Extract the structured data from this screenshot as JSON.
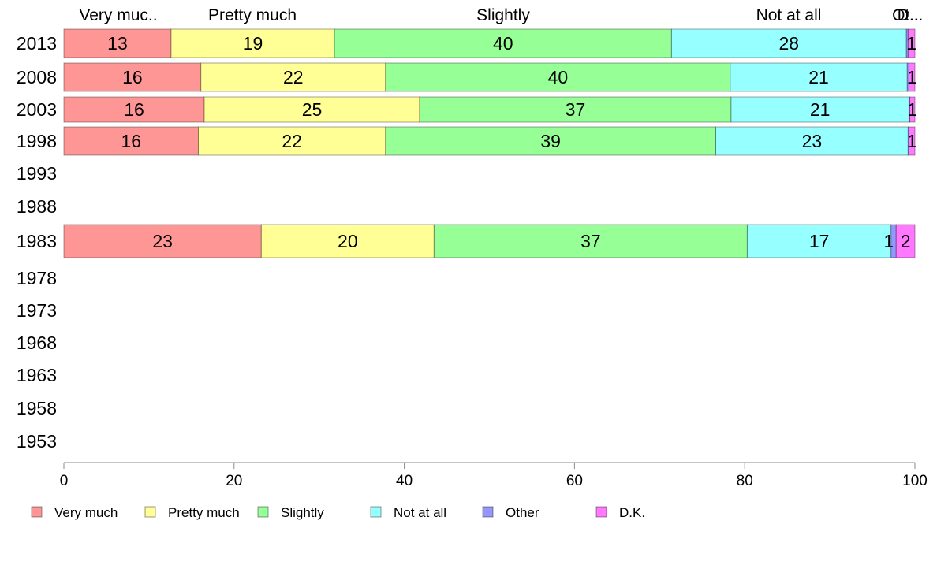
{
  "chart_data": {
    "type": "bar",
    "orientation": "horizontal",
    "stacked": true,
    "title": "",
    "xlabel": "",
    "ylabel": "",
    "xlim": [
      0,
      100
    ],
    "x_ticks": [
      0,
      20,
      40,
      60,
      80,
      100
    ],
    "grid": false,
    "legend_position": "bottom",
    "top_labels": [
      "Very muc..",
      "Pretty much",
      "Slightly",
      "Not at all",
      "Ot..",
      "D..."
    ],
    "categories": [
      "2013",
      "2008",
      "2003",
      "1998",
      "1993",
      "1988",
      "1983",
      "1978",
      "1973",
      "1968",
      "1963",
      "1958",
      "1953"
    ],
    "series": [
      {
        "name": "Very much",
        "color": "#ff9696",
        "values": [
          12.6,
          16.1,
          16.5,
          15.8,
          null,
          null,
          23.2,
          null,
          null,
          null,
          null,
          null,
          null
        ],
        "labels": [
          "13",
          "16",
          "16",
          "16",
          null,
          null,
          "23",
          null,
          null,
          null,
          null,
          null,
          null
        ]
      },
      {
        "name": "Pretty much",
        "color": "#ffff96",
        "values": [
          19.2,
          21.7,
          25.3,
          22.0,
          null,
          null,
          20.3,
          null,
          null,
          null,
          null,
          null,
          null
        ],
        "labels": [
          "19",
          "22",
          "25",
          "22",
          null,
          null,
          "20",
          null,
          null,
          null,
          null,
          null,
          null
        ]
      },
      {
        "name": "Slightly",
        "color": "#96ff96",
        "values": [
          39.6,
          40.5,
          36.6,
          38.8,
          null,
          null,
          36.8,
          null,
          null,
          null,
          null,
          null,
          null
        ],
        "labels": [
          "40",
          "40",
          "37",
          "39",
          null,
          null,
          "37",
          null,
          null,
          null,
          null,
          null,
          null
        ]
      },
      {
        "name": "Not at all",
        "color": "#96ffff",
        "values": [
          27.6,
          20.8,
          20.9,
          22.6,
          null,
          null,
          16.9,
          null,
          null,
          null,
          null,
          null,
          null
        ],
        "labels": [
          "28",
          "21",
          "21",
          "23",
          null,
          null,
          "17",
          null,
          null,
          null,
          null,
          null,
          null
        ]
      },
      {
        "name": "Other",
        "color": "#9696ff",
        "values": [
          0.2,
          0.2,
          0.1,
          0.1,
          null,
          null,
          0.6,
          null,
          null,
          null,
          null,
          null,
          null
        ],
        "labels": [
          null,
          null,
          null,
          null,
          null,
          null,
          "1",
          null,
          null,
          null,
          null,
          null,
          null
        ]
      },
      {
        "name": "D.K.",
        "color": "#ff78ff",
        "values": [
          0.8,
          0.7,
          0.6,
          0.7,
          null,
          null,
          2.2,
          null,
          null,
          null,
          null,
          null,
          null
        ],
        "labels": [
          "1",
          "1",
          "1",
          "1",
          null,
          null,
          "2",
          null,
          null,
          null,
          null,
          null,
          null
        ]
      }
    ]
  }
}
